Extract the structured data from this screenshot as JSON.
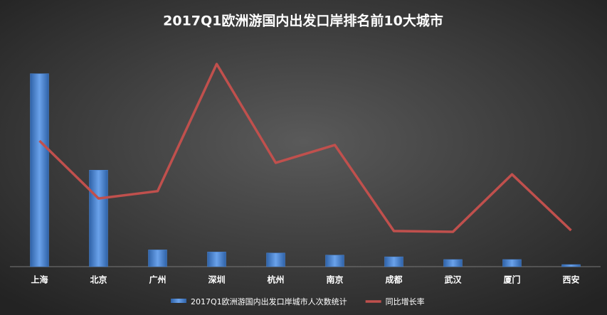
{
  "chart_data": {
    "type": "bar_line",
    "title": "2017Q1欧洲游国内出发口岸排名前10大城市",
    "categories": [
      "上海",
      "北京",
      "广州",
      "深圳",
      "杭州",
      "南京",
      "成都",
      "武汉",
      "厦门",
      "西安"
    ],
    "series": [
      {
        "name": "2017Q1欧洲游国内出发口岸城市人次数统计",
        "type": "bar",
        "color": "#4a86d4",
        "values": [
          92,
          46,
          8,
          7,
          6.5,
          5.5,
          4.7,
          3.4,
          3.4,
          1
        ]
      },
      {
        "name": "同比增长率",
        "type": "line",
        "axis": "y2",
        "color": "#c0504d",
        "values": [
          60,
          32.5,
          36,
          96.6,
          49.5,
          58,
          17,
          16.6,
          44,
          17.3
        ]
      }
    ],
    "ylim": [
      0,
      100
    ],
    "y2lim": [
      0,
      100
    ]
  }
}
